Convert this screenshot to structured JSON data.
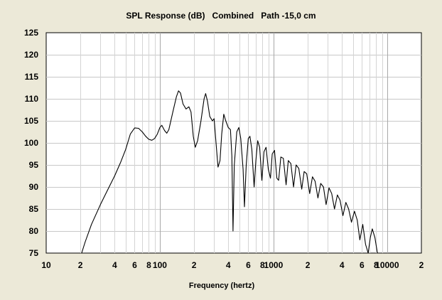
{
  "chart_data": {
    "type": "line",
    "title": "SPL Response (dB)   Combined   Path -15,0 cm",
    "xlabel": "Frequency (hertz)",
    "ylabel": "",
    "x_scale": "log",
    "xlim": [
      10,
      20000
    ],
    "ylim": [
      75,
      125
    ],
    "grid": true,
    "y_ticks": [
      75,
      80,
      85,
      90,
      95,
      100,
      105,
      110,
      115,
      120,
      125
    ],
    "x_ticks": [
      {
        "value": 10,
        "label": "10"
      },
      {
        "value": 20,
        "label": "2"
      },
      {
        "value": 40,
        "label": "4"
      },
      {
        "value": 60,
        "label": "6"
      },
      {
        "value": 80,
        "label": "8"
      },
      {
        "value": 100,
        "label": "100"
      },
      {
        "value": 200,
        "label": "2"
      },
      {
        "value": 400,
        "label": "4"
      },
      {
        "value": 600,
        "label": "6"
      },
      {
        "value": 800,
        "label": "8"
      },
      {
        "value": 1000,
        "label": "1000"
      },
      {
        "value": 2000,
        "label": "2"
      },
      {
        "value": 4000,
        "label": "4"
      },
      {
        "value": 6000,
        "label": "6"
      },
      {
        "value": 8000,
        "label": "8"
      },
      {
        "value": 10000,
        "label": "10000"
      },
      {
        "value": 20000,
        "label": "2"
      }
    ],
    "series": [
      {
        "color": "#000000",
        "points": [
          [
            20.5,
            75.0
          ],
          [
            22,
            77.5
          ],
          [
            25,
            81.5
          ],
          [
            30,
            86.0
          ],
          [
            35,
            89.5
          ],
          [
            40,
            92.5
          ],
          [
            45,
            95.5
          ],
          [
            50,
            98.5
          ],
          [
            55,
            102.0
          ],
          [
            60,
            103.4
          ],
          [
            65,
            103.3
          ],
          [
            70,
            102.5
          ],
          [
            75,
            101.5
          ],
          [
            80,
            100.8
          ],
          [
            85,
            100.6
          ],
          [
            90,
            101.0
          ],
          [
            95,
            102.0
          ],
          [
            100,
            103.5
          ],
          [
            104,
            104.0
          ],
          [
            110,
            102.8
          ],
          [
            115,
            102.2
          ],
          [
            120,
            103.0
          ],
          [
            130,
            107.0
          ],
          [
            140,
            110.5
          ],
          [
            146,
            111.8
          ],
          [
            152,
            111.3
          ],
          [
            160,
            108.8
          ],
          [
            170,
            107.7
          ],
          [
            180,
            108.2
          ],
          [
            188,
            107.0
          ],
          [
            197,
            101.5
          ],
          [
            205,
            99.0
          ],
          [
            215,
            100.5
          ],
          [
            230,
            105.0
          ],
          [
            245,
            110.0
          ],
          [
            253,
            111.2
          ],
          [
            262,
            109.5
          ],
          [
            275,
            106.0
          ],
          [
            290,
            105.0
          ],
          [
            300,
            105.5
          ],
          [
            312,
            100.0
          ],
          [
            325,
            94.5
          ],
          [
            338,
            96.0
          ],
          [
            350,
            102.0
          ],
          [
            365,
            106.5
          ],
          [
            380,
            105.0
          ],
          [
            400,
            103.5
          ],
          [
            418,
            103.0
          ],
          [
            430,
            97.0
          ],
          [
            440,
            80.0
          ],
          [
            452,
            95.0
          ],
          [
            475,
            102.5
          ],
          [
            495,
            103.5
          ],
          [
            515,
            101.0
          ],
          [
            540,
            94.0
          ],
          [
            555,
            85.5
          ],
          [
            575,
            95.0
          ],
          [
            600,
            101.0
          ],
          [
            620,
            101.5
          ],
          [
            645,
            98.5
          ],
          [
            675,
            90.0
          ],
          [
            700,
            96.0
          ],
          [
            725,
            100.5
          ],
          [
            755,
            99.0
          ],
          [
            790,
            91.5
          ],
          [
            825,
            98.0
          ],
          [
            860,
            99.0
          ],
          [
            900,
            94.0
          ],
          [
            940,
            92.0
          ],
          [
            975,
            97.5
          ],
          [
            1020,
            98.3
          ],
          [
            1070,
            92.0
          ],
          [
            1110,
            91.5
          ],
          [
            1160,
            96.8
          ],
          [
            1220,
            96.5
          ],
          [
            1290,
            90.5
          ],
          [
            1350,
            96.0
          ],
          [
            1420,
            95.3
          ],
          [
            1500,
            90.0
          ],
          [
            1580,
            95.0
          ],
          [
            1670,
            94.2
          ],
          [
            1770,
            89.5
          ],
          [
            1860,
            93.5
          ],
          [
            1960,
            93.0
          ],
          [
            2080,
            88.5
          ],
          [
            2200,
            92.3
          ],
          [
            2320,
            91.3
          ],
          [
            2460,
            87.5
          ],
          [
            2600,
            90.8
          ],
          [
            2750,
            90.0
          ],
          [
            2900,
            86.0
          ],
          [
            3080,
            89.8
          ],
          [
            3250,
            88.5
          ],
          [
            3440,
            85.0
          ],
          [
            3650,
            88.2
          ],
          [
            3850,
            87.0
          ],
          [
            4080,
            83.5
          ],
          [
            4330,
            86.5
          ],
          [
            4580,
            85.0
          ],
          [
            4850,
            82.0
          ],
          [
            5150,
            84.5
          ],
          [
            5450,
            82.5
          ],
          [
            5750,
            78.0
          ],
          [
            6100,
            81.5
          ],
          [
            6450,
            77.0
          ],
          [
            6800,
            75.0
          ],
          [
            7100,
            78.5
          ],
          [
            7400,
            80.5
          ],
          [
            7800,
            78.5
          ],
          [
            8200,
            75.0
          ]
        ]
      }
    ]
  }
}
